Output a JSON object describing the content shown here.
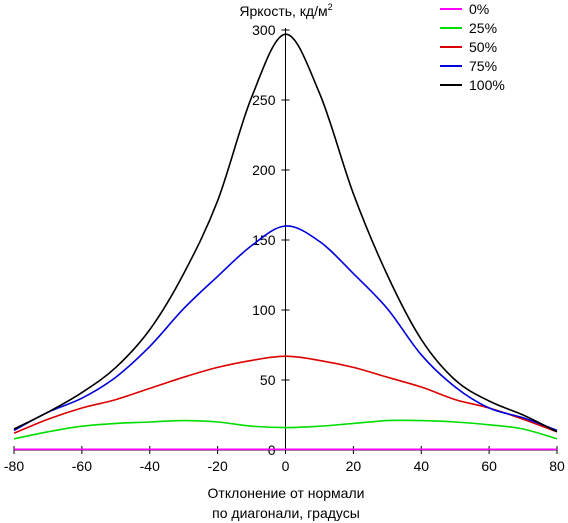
{
  "chart_data": {
    "type": "line",
    "title": "",
    "ylabel": "Яркость, кд/м",
    "ylabel_sup": "2",
    "xlabel_line1": "Отклонение от нормали",
    "xlabel_line2": "по диагонали, градусы",
    "xlim": [
      -80,
      80
    ],
    "ylim": [
      0,
      300
    ],
    "xticks": [
      -80,
      -60,
      -40,
      -20,
      0,
      20,
      40,
      60,
      80
    ],
    "yticks": [
      0,
      50,
      100,
      150,
      200,
      250,
      300
    ],
    "grid": false,
    "legend_position": "top-right",
    "x": [
      -80,
      -70,
      -60,
      -50,
      -40,
      -30,
      -20,
      -10,
      0,
      10,
      20,
      30,
      40,
      50,
      60,
      70,
      80
    ],
    "series": [
      {
        "name": "0%",
        "color": "#ff00ff",
        "values": [
          0.5,
          0.5,
          0.5,
          0.5,
          0.5,
          0.5,
          0.5,
          0.5,
          0.5,
          0.5,
          0.5,
          0.5,
          0.5,
          0.5,
          0.5,
          0.5,
          0.5
        ]
      },
      {
        "name": "25%",
        "color": "#00dd00",
        "values": [
          8,
          13,
          17,
          19,
          20,
          21,
          20,
          17,
          16,
          17,
          19,
          21,
          21,
          20,
          18,
          15,
          8
        ]
      },
      {
        "name": "50%",
        "color": "#dd0000",
        "values": [
          12,
          22,
          30,
          36,
          44,
          52,
          59,
          64,
          67,
          64,
          59,
          52,
          45,
          36,
          30,
          22,
          13
        ]
      },
      {
        "name": "75%",
        "color": "#0000dd",
        "values": [
          14,
          27,
          37,
          52,
          74,
          101,
          124,
          146,
          160,
          149,
          126,
          101,
          68,
          45,
          30,
          23,
          14
        ]
      },
      {
        "name": "100%",
        "color": "#000000",
        "values": [
          15,
          27,
          41,
          59,
          86,
          126,
          178,
          252,
          297,
          255,
          183,
          125,
          79,
          50,
          35,
          25,
          13
        ]
      }
    ]
  }
}
